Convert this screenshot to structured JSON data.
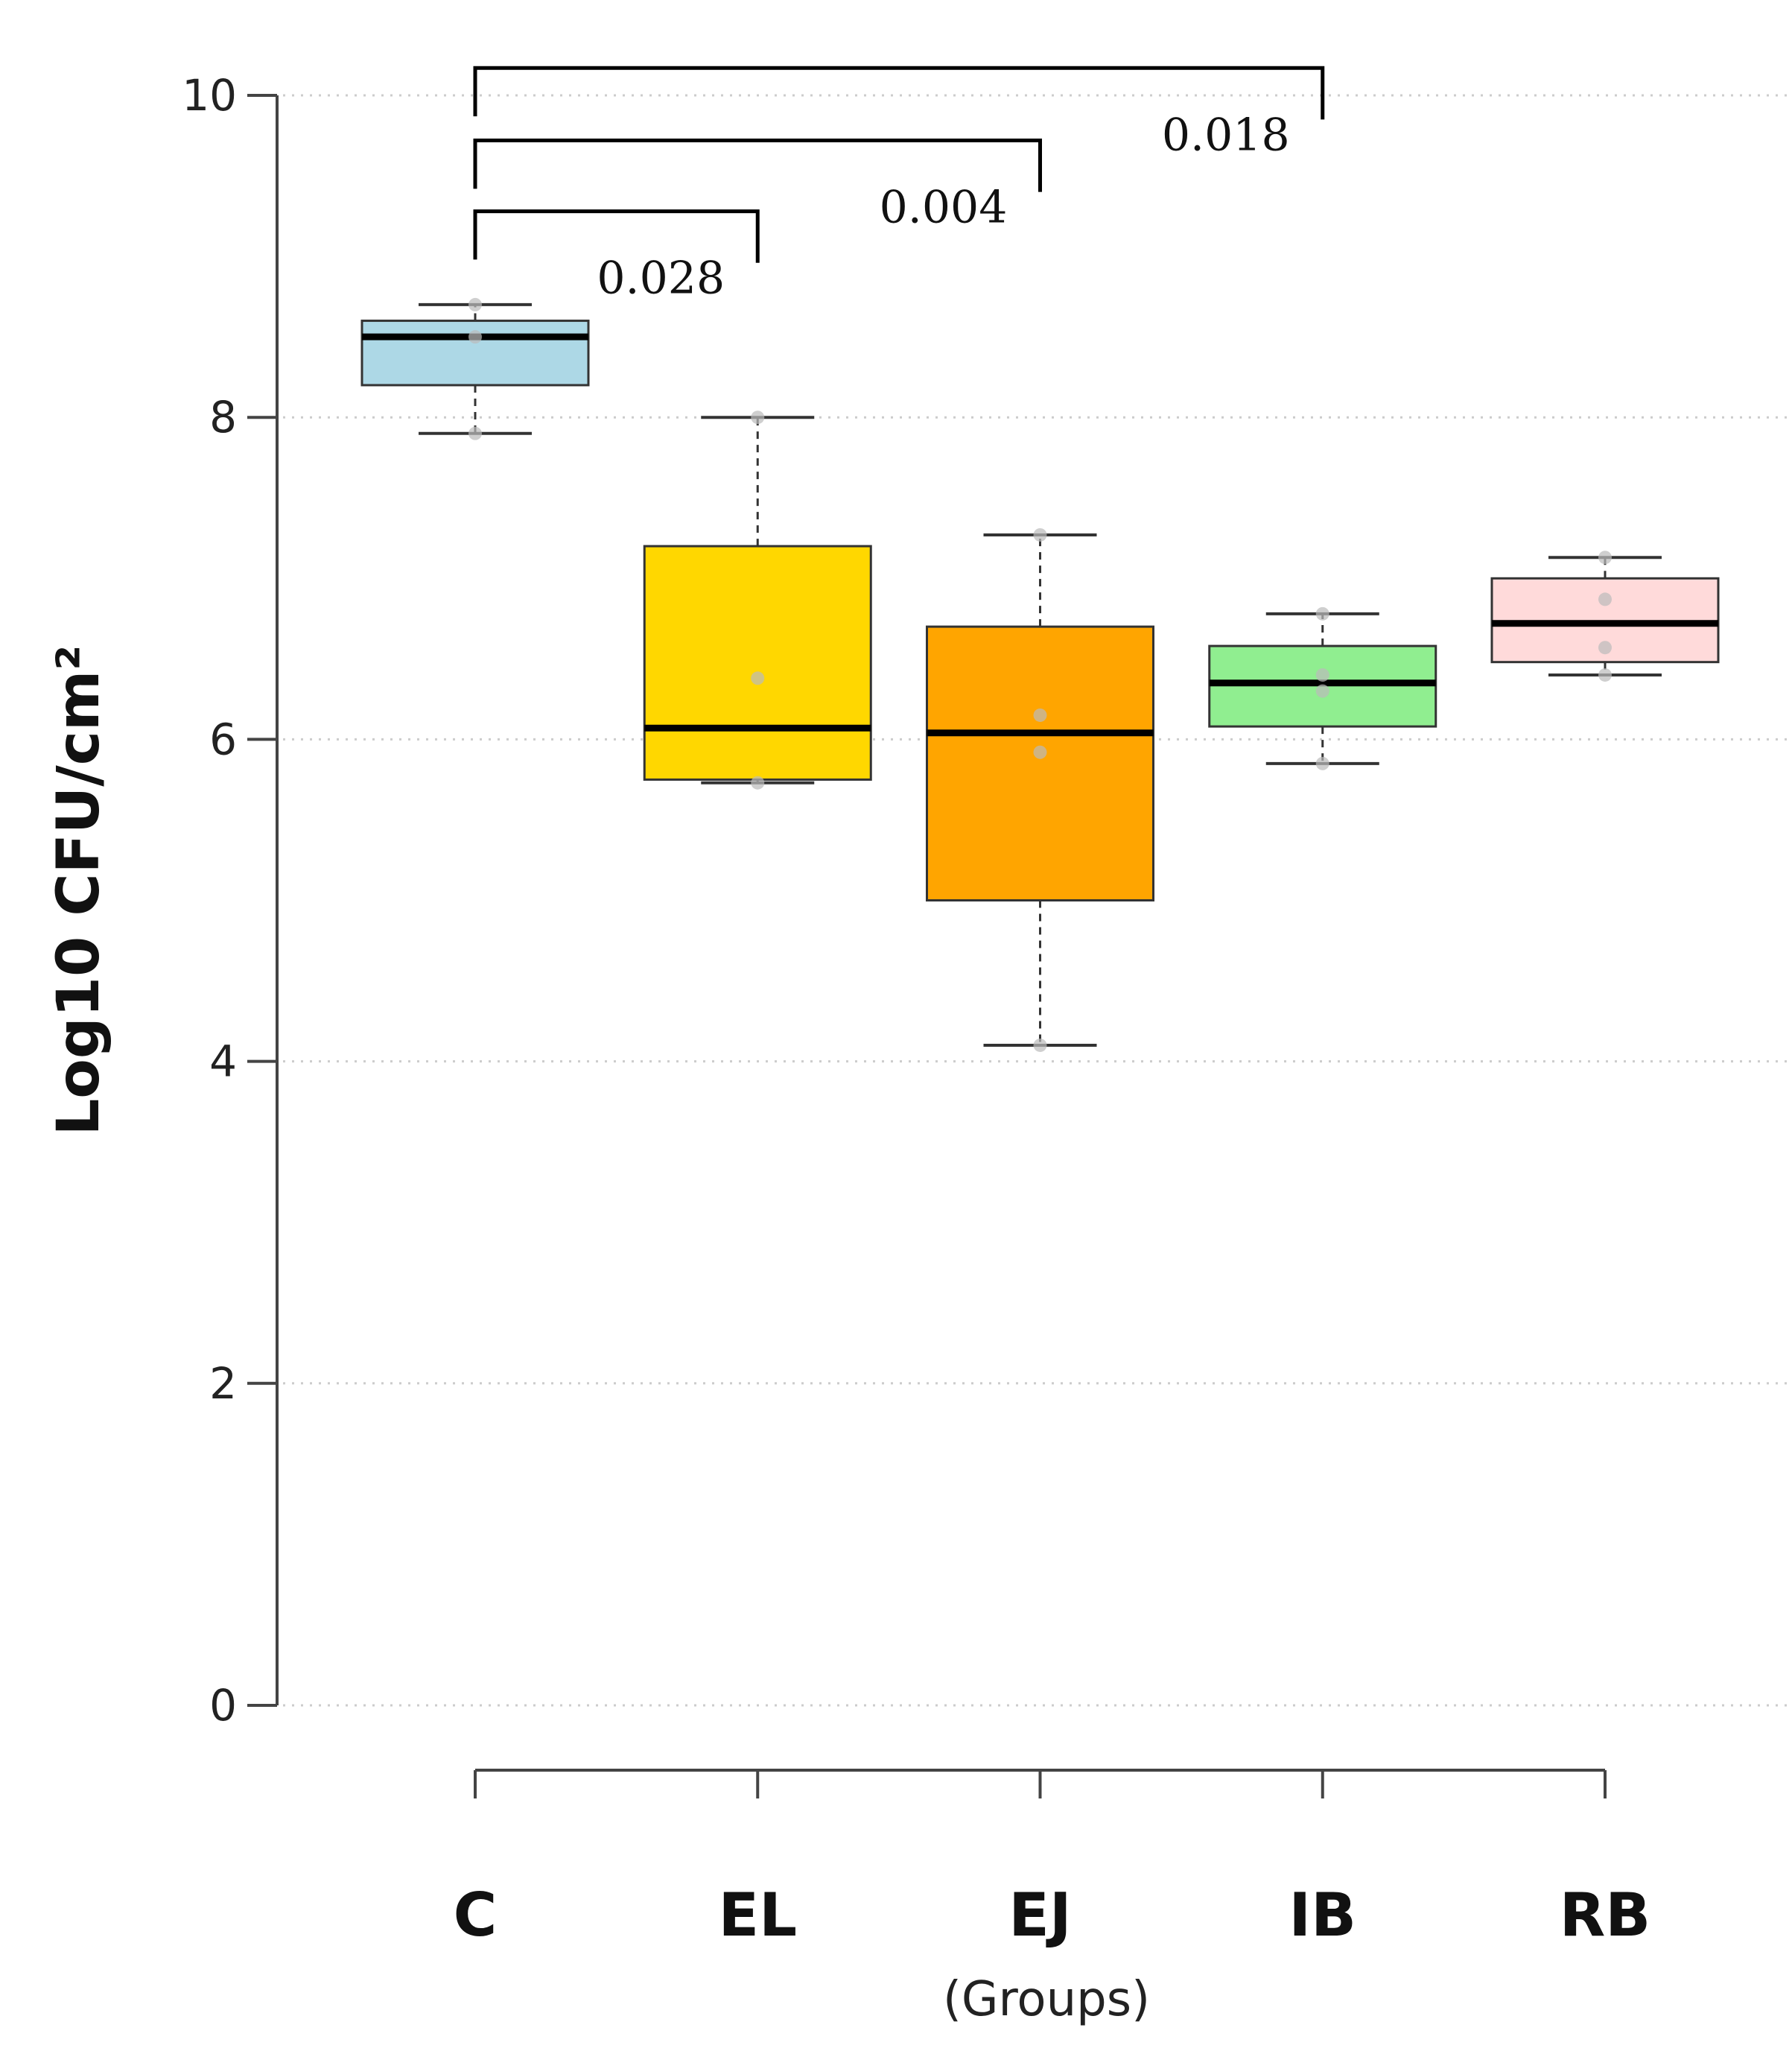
{
  "chart_data": {
    "type": "box",
    "title": "",
    "xlabel": "(Groups)",
    "ylabel": "Log10 CFU/cm²",
    "ylim": [
      0,
      10
    ],
    "yticks": [
      0,
      2,
      4,
      6,
      8,
      10
    ],
    "ytick_labels": [
      "0",
      "2",
      "4",
      "6",
      "8",
      "10"
    ],
    "grid": true,
    "categories": [
      "C",
      "EL",
      "EJ",
      "IB",
      "RB"
    ],
    "boxes": [
      {
        "group": "C",
        "min": 7.9,
        "q1": 8.2,
        "median": 8.5,
        "q3": 8.6,
        "max": 8.7,
        "color": "#ADD8E6",
        "points": [
          7.9,
          8.5,
          8.7
        ]
      },
      {
        "group": "EL",
        "min": 5.73,
        "q1": 5.75,
        "median": 6.07,
        "q3": 7.2,
        "max": 8.0,
        "color": "#FFD700",
        "points": [
          5.73,
          6.38,
          8.0
        ]
      },
      {
        "group": "EJ",
        "min": 4.1,
        "q1": 5.0,
        "median": 6.04,
        "q3": 6.7,
        "max": 7.27,
        "color": "#FFA500",
        "points": [
          4.1,
          5.92,
          6.15,
          7.27
        ]
      },
      {
        "group": "IB",
        "min": 5.85,
        "q1": 6.08,
        "median": 6.35,
        "q3": 6.58,
        "max": 6.78,
        "color": "#90EE90",
        "points": [
          5.85,
          6.3,
          6.4,
          6.78
        ]
      },
      {
        "group": "RB",
        "min": 6.4,
        "q1": 6.48,
        "median": 6.72,
        "q3": 7.0,
        "max": 7.13,
        "color": "#FFDADA",
        "points": [
          6.4,
          6.57,
          6.87,
          7.13
        ]
      }
    ],
    "comparisons": [
      {
        "from": "C",
        "to": "EL",
        "p": "0.028",
        "level": 9.28
      },
      {
        "from": "C",
        "to": "EJ",
        "p": "0.004",
        "level": 9.72
      },
      {
        "from": "C",
        "to": "IB",
        "p": "0.018",
        "level": 10.17
      }
    ]
  }
}
